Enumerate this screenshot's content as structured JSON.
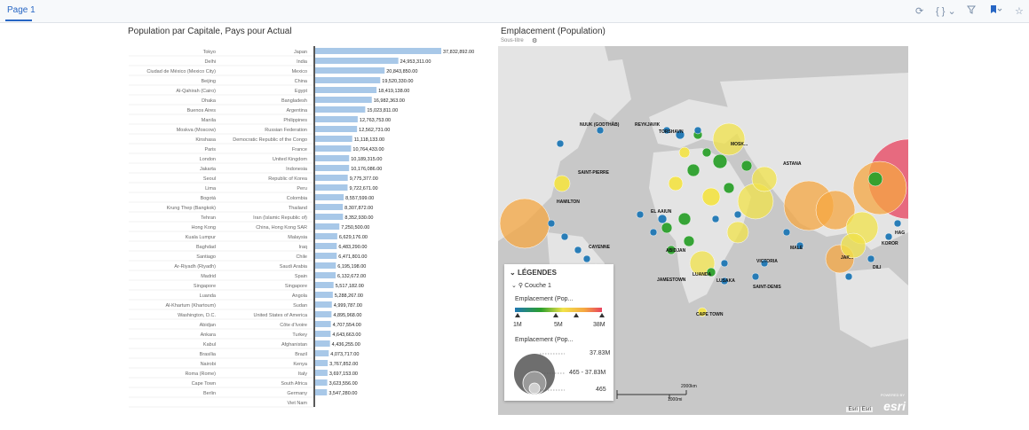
{
  "header": {
    "page_tab": "Page 1"
  },
  "toolbar": {
    "icons": [
      "restore-icon",
      "braces-icon",
      "filter-icon",
      "bookmark-icon",
      "star-icon"
    ],
    "braces_label": "{ } ⌄"
  },
  "left_panel": {
    "title": "Population par Capitale, Pays pour Actual"
  },
  "chart_data": {
    "type": "bar",
    "orientation": "horizontal",
    "title": "Population par Capitale, Pays pour Actual",
    "bar_color": "#a8c8e8",
    "rows": [
      {
        "city": "Tokyo",
        "country": "Japan",
        "value": 37832892,
        "label": "37,832,892.00"
      },
      {
        "city": "Delhi",
        "country": "India",
        "value": 24953311,
        "label": "24,953,311.00"
      },
      {
        "city": "Ciudad de México (Mexico City)",
        "country": "Mexico",
        "value": 20843850,
        "label": "20,843,850.00"
      },
      {
        "city": "Beijing",
        "country": "China",
        "value": 19520330,
        "label": "19,520,330.00"
      },
      {
        "city": "Al-Qahirah (Cairo)",
        "country": "Egypt",
        "value": 18419138,
        "label": "18,419,138.00"
      },
      {
        "city": "Dhaka",
        "country": "Bangladesh",
        "value": 16982363,
        "label": "16,982,363.00"
      },
      {
        "city": "Buenos Aires",
        "country": "Argentina",
        "value": 15023811,
        "label": "15,023,811.00"
      },
      {
        "city": "Manila",
        "country": "Philippines",
        "value": 12763753,
        "label": "12,763,753.00"
      },
      {
        "city": "Moskva (Moscow)",
        "country": "Russian Federation",
        "value": 12562731,
        "label": "12,562,731.00"
      },
      {
        "city": "Kinshasa",
        "country": "Democratic Republic of the Congo",
        "value": 11118133,
        "label": "11,118,133.00"
      },
      {
        "city": "Paris",
        "country": "France",
        "value": 10764433,
        "label": "10,764,433.00"
      },
      {
        "city": "London",
        "country": "United Kingdom",
        "value": 10189315,
        "label": "10,189,315.00"
      },
      {
        "city": "Jakarta",
        "country": "Indonesia",
        "value": 10176086,
        "label": "10,176,086.00"
      },
      {
        "city": "Seoul",
        "country": "Republic of Korea",
        "value": 9775377,
        "label": "9,775,377.00"
      },
      {
        "city": "Lima",
        "country": "Peru",
        "value": 9722671,
        "label": "9,722,671.00"
      },
      {
        "city": "Bogotá",
        "country": "Colombia",
        "value": 8557599,
        "label": "8,557,599.00"
      },
      {
        "city": "Krung Thep (Bangkok)",
        "country": "Thailand",
        "value": 8307872,
        "label": "8,307,872.00"
      },
      {
        "city": "Tehran",
        "country": "Iran (Islamic Republic of)",
        "value": 8352930,
        "label": "8,352,930.00"
      },
      {
        "city": "Hong Kong",
        "country": "China, Hong Kong SAR",
        "value": 7250500,
        "label": "7,250,500.00"
      },
      {
        "city": "Kuala Lumpur",
        "country": "Malaysia",
        "value": 6629176,
        "label": "6,629,176.00"
      },
      {
        "city": "Baghdad",
        "country": "Iraq",
        "value": 6483290,
        "label": "6,483,290.00"
      },
      {
        "city": "Santiago",
        "country": "Chile",
        "value": 6471801,
        "label": "6,471,801.00"
      },
      {
        "city": "Ar-Riyadh (Riyadh)",
        "country": "Saudi Arabia",
        "value": 6195198,
        "label": "6,195,198.00"
      },
      {
        "city": "Madrid",
        "country": "Spain",
        "value": 6132672,
        "label": "6,132,672.00"
      },
      {
        "city": "Singapore",
        "country": "Singapore",
        "value": 5517182,
        "label": "5,517,182.00"
      },
      {
        "city": "Luanda",
        "country": "Angola",
        "value": 5288267,
        "label": "5,288,267.00"
      },
      {
        "city": "Al-Khartum (Khartoum)",
        "country": "Sudan",
        "value": 4999787,
        "label": "4,999,787.00"
      },
      {
        "city": "Washington, D.C.",
        "country": "United States of America",
        "value": 4895968,
        "label": "4,895,968.00"
      },
      {
        "city": "Abidjan",
        "country": "Côte d'Ivoire",
        "value": 4707554,
        "label": "4,707,554.00"
      },
      {
        "city": "Ankara",
        "country": "Turkey",
        "value": 4643663,
        "label": "4,643,663.00"
      },
      {
        "city": "Kabul",
        "country": "Afghanistan",
        "value": 4436255,
        "label": "4,436,255.00"
      },
      {
        "city": "Brasília",
        "country": "Brazil",
        "value": 4073717,
        "label": "4,073,717.00"
      },
      {
        "city": "Nairobi",
        "country": "Kenya",
        "value": 3767852,
        "label": "3,767,852.00"
      },
      {
        "city": "Roma (Rome)",
        "country": "Italy",
        "value": 3697153,
        "label": "3,697,153.00"
      },
      {
        "city": "Cape Town",
        "country": "South Africa",
        "value": 3623556,
        "label": "3,623,556.00"
      },
      {
        "city": "Berlin",
        "country": "Germany",
        "value": 3547280,
        "label": "3,547,280.00"
      },
      {
        "city": "",
        "country": "Viet Nam",
        "value": null,
        "label": ""
      }
    ]
  },
  "right_panel": {
    "title": "Emplacement (Population)",
    "subtitle": "Sous-titre",
    "map": {
      "labels": [
        "NUUK (GODTHÅB)",
        "REYKJAVIK",
        "TORSHAVN",
        "MOSK...",
        "ASTANA",
        "SAINT-PIERRE",
        "HAMILTON",
        "EL AAIUN",
        "CAYENNE",
        "ABIDJAN",
        "MALE",
        "KOROR",
        "JAK...",
        "DILI",
        "VICTORIA",
        "JAMESTOWN",
        "LUANDA",
        "LUSAKA",
        "SAINT-DENIS",
        "CAPE TOWN",
        "HAG"
      ],
      "scale_top": "2000km",
      "scale_bottom": "1000mi",
      "credit": "Esri | Esri",
      "logo": "esri",
      "logo_tagline": "POWERED BY"
    },
    "legend": {
      "header": "LÉGENDES",
      "layer": "Couche 1",
      "color_title": "Emplacement (Pop...",
      "color_ticks": [
        "1M",
        "5M",
        "38M"
      ],
      "colors": [
        "#1f77b4",
        "#2ca02c",
        "#f2e34a",
        "#f5a742",
        "#e8425e"
      ],
      "size_title": "Emplacement (Pop...",
      "size_labels": [
        "37.83M",
        "465 - 37.83M",
        "465"
      ]
    }
  }
}
